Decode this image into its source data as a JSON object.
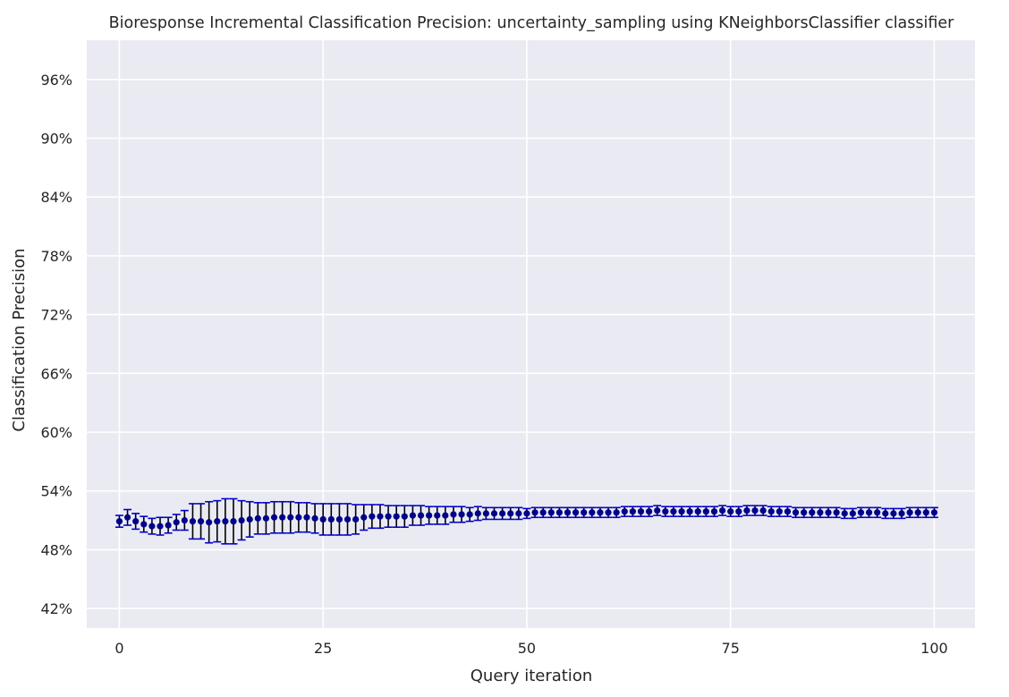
{
  "chart_data": {
    "type": "scatter",
    "title": "Bioresponse Incremental Classification Precision: uncertainty_sampling using KNeighborsClassifier classifier",
    "xlabel": "Query iteration",
    "ylabel": "Classification Precision",
    "xlim": [
      -4,
      105
    ],
    "ylim": [
      0.4,
      1.0
    ],
    "xticks": [
      0,
      25,
      50,
      75,
      100
    ],
    "xtick_labels": [
      "0",
      "25",
      "50",
      "75",
      "100"
    ],
    "yticks": [
      0.42,
      0.48,
      0.54,
      0.6,
      0.66,
      0.72,
      0.78,
      0.84,
      0.9,
      0.96
    ],
    "ytick_labels": [
      "42%",
      "48%",
      "54%",
      "60%",
      "66%",
      "72%",
      "78%",
      "84%",
      "90%",
      "96%"
    ],
    "grid": true,
    "colors": {
      "background": "#eaeaf2",
      "grid": "#ffffff",
      "marker": "#00008b",
      "error_bar": "#000000",
      "cap": "#0000cd"
    },
    "series": [
      {
        "x": [
          0,
          1,
          2,
          3,
          4,
          5,
          6,
          7,
          8,
          9,
          10,
          11,
          12,
          13,
          14,
          15,
          16,
          17,
          18,
          19,
          20,
          21,
          22,
          23,
          24,
          25,
          26,
          27,
          28,
          29,
          30,
          31,
          32,
          33,
          34,
          35,
          36,
          37,
          38,
          39,
          40,
          41,
          42,
          43,
          44,
          45,
          46,
          47,
          48,
          49,
          50,
          51,
          52,
          53,
          54,
          55,
          56,
          57,
          58,
          59,
          60,
          61,
          62,
          63,
          64,
          65,
          66,
          67,
          68,
          69,
          70,
          71,
          72,
          73,
          74,
          75,
          76,
          77,
          78,
          79,
          80,
          81,
          82,
          83,
          84,
          85,
          86,
          87,
          88,
          89,
          90,
          91,
          92,
          93,
          94,
          95,
          96,
          97,
          98,
          99,
          100
        ],
        "y": [
          0.509,
          0.513,
          0.509,
          0.506,
          0.504,
          0.504,
          0.505,
          0.508,
          0.51,
          0.509,
          0.509,
          0.508,
          0.509,
          0.509,
          0.509,
          0.51,
          0.511,
          0.512,
          0.512,
          0.513,
          0.513,
          0.513,
          0.513,
          0.513,
          0.512,
          0.511,
          0.511,
          0.511,
          0.511,
          0.511,
          0.513,
          0.514,
          0.514,
          0.514,
          0.514,
          0.514,
          0.515,
          0.515,
          0.515,
          0.515,
          0.515,
          0.516,
          0.516,
          0.516,
          0.517,
          0.517,
          0.517,
          0.517,
          0.517,
          0.517,
          0.517,
          0.518,
          0.518,
          0.518,
          0.518,
          0.518,
          0.518,
          0.518,
          0.518,
          0.518,
          0.518,
          0.518,
          0.519,
          0.519,
          0.519,
          0.519,
          0.52,
          0.519,
          0.519,
          0.519,
          0.519,
          0.519,
          0.519,
          0.519,
          0.52,
          0.519,
          0.519,
          0.52,
          0.52,
          0.52,
          0.519,
          0.519,
          0.519,
          0.518,
          0.518,
          0.518,
          0.518,
          0.518,
          0.518,
          0.517,
          0.517,
          0.518,
          0.518,
          0.518,
          0.517,
          0.517,
          0.517,
          0.518,
          0.518,
          0.518,
          0.518
        ],
        "err": [
          0.006,
          0.008,
          0.008,
          0.008,
          0.008,
          0.009,
          0.008,
          0.008,
          0.01,
          0.018,
          0.018,
          0.021,
          0.021,
          0.023,
          0.023,
          0.02,
          0.018,
          0.016,
          0.016,
          0.016,
          0.016,
          0.016,
          0.015,
          0.015,
          0.015,
          0.016,
          0.016,
          0.016,
          0.016,
          0.015,
          0.013,
          0.012,
          0.012,
          0.011,
          0.011,
          0.011,
          0.01,
          0.01,
          0.009,
          0.009,
          0.009,
          0.008,
          0.008,
          0.007,
          0.007,
          0.006,
          0.006,
          0.006,
          0.006,
          0.006,
          0.005,
          0.005,
          0.005,
          0.005,
          0.005,
          0.005,
          0.005,
          0.005,
          0.005,
          0.005,
          0.005,
          0.005,
          0.005,
          0.005,
          0.005,
          0.005,
          0.005,
          0.005,
          0.005,
          0.005,
          0.005,
          0.005,
          0.005,
          0.005,
          0.005,
          0.005,
          0.005,
          0.005,
          0.005,
          0.005,
          0.005,
          0.005,
          0.005,
          0.005,
          0.005,
          0.005,
          0.005,
          0.005,
          0.005,
          0.005,
          0.005,
          0.005,
          0.005,
          0.005,
          0.005,
          0.005,
          0.005,
          0.005,
          0.005,
          0.005,
          0.005
        ]
      }
    ]
  }
}
